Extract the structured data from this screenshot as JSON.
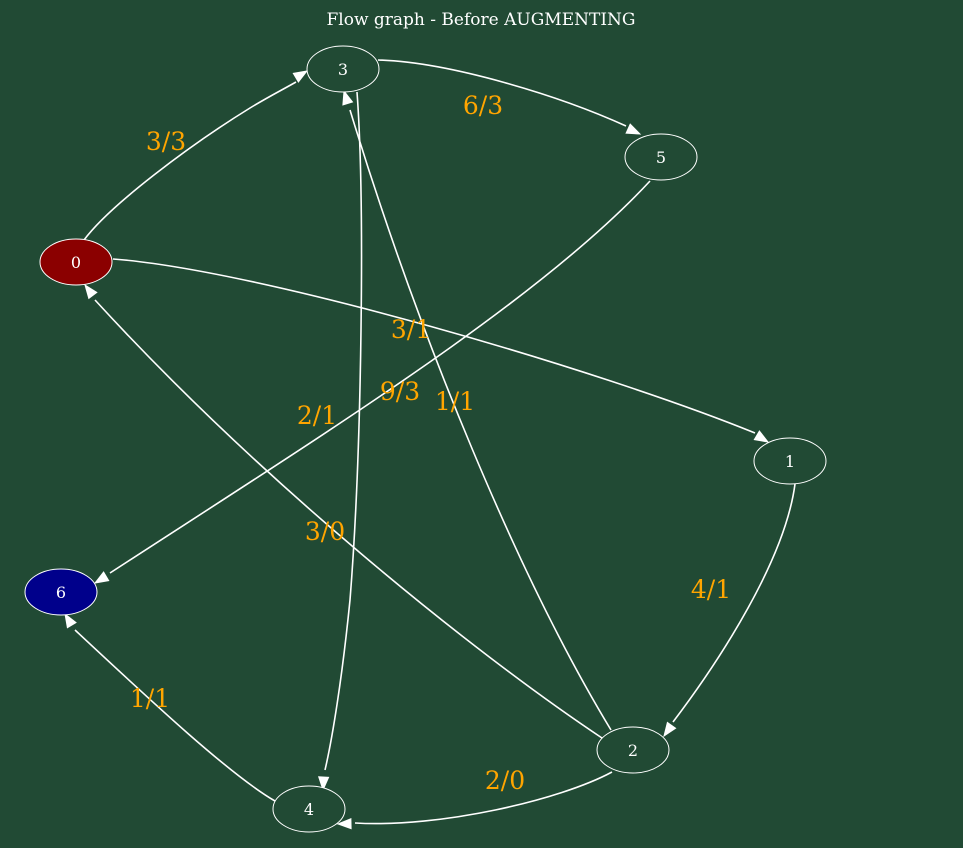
{
  "title": "Flow graph - Before AUGMENTING",
  "colors": {
    "background": "#214a34",
    "edge": "#ffffff",
    "edge_label": "#ffa500",
    "node_default_fill": "#214a34",
    "source_fill": "#8b0000",
    "sink_fill": "#00008b"
  },
  "nodes": [
    {
      "id": "0",
      "label": "0",
      "role": "source"
    },
    {
      "id": "1",
      "label": "1",
      "role": "default"
    },
    {
      "id": "2",
      "label": "2",
      "role": "default"
    },
    {
      "id": "3",
      "label": "3",
      "role": "default"
    },
    {
      "id": "4",
      "label": "4",
      "role": "default"
    },
    {
      "id": "5",
      "label": "5",
      "role": "default"
    },
    {
      "id": "6",
      "label": "6",
      "role": "sink"
    }
  ],
  "edges": [
    {
      "from": "0",
      "to": "3",
      "label": "3/3"
    },
    {
      "from": "3",
      "to": "5",
      "label": "6/3"
    },
    {
      "from": "0",
      "to": "1",
      "label": "3/1"
    },
    {
      "from": "5",
      "to": "6",
      "label": "9/3"
    },
    {
      "from": "2",
      "to": "3",
      "label": "1/1"
    },
    {
      "from": "3",
      "to": "4",
      "label": "2/1"
    },
    {
      "from": "2",
      "to": "0",
      "label": "3/0"
    },
    {
      "from": "1",
      "to": "2",
      "label": "4/1"
    },
    {
      "from": "4",
      "to": "6",
      "label": "1/1"
    },
    {
      "from": "2",
      "to": "4",
      "label": "2/0"
    }
  ]
}
